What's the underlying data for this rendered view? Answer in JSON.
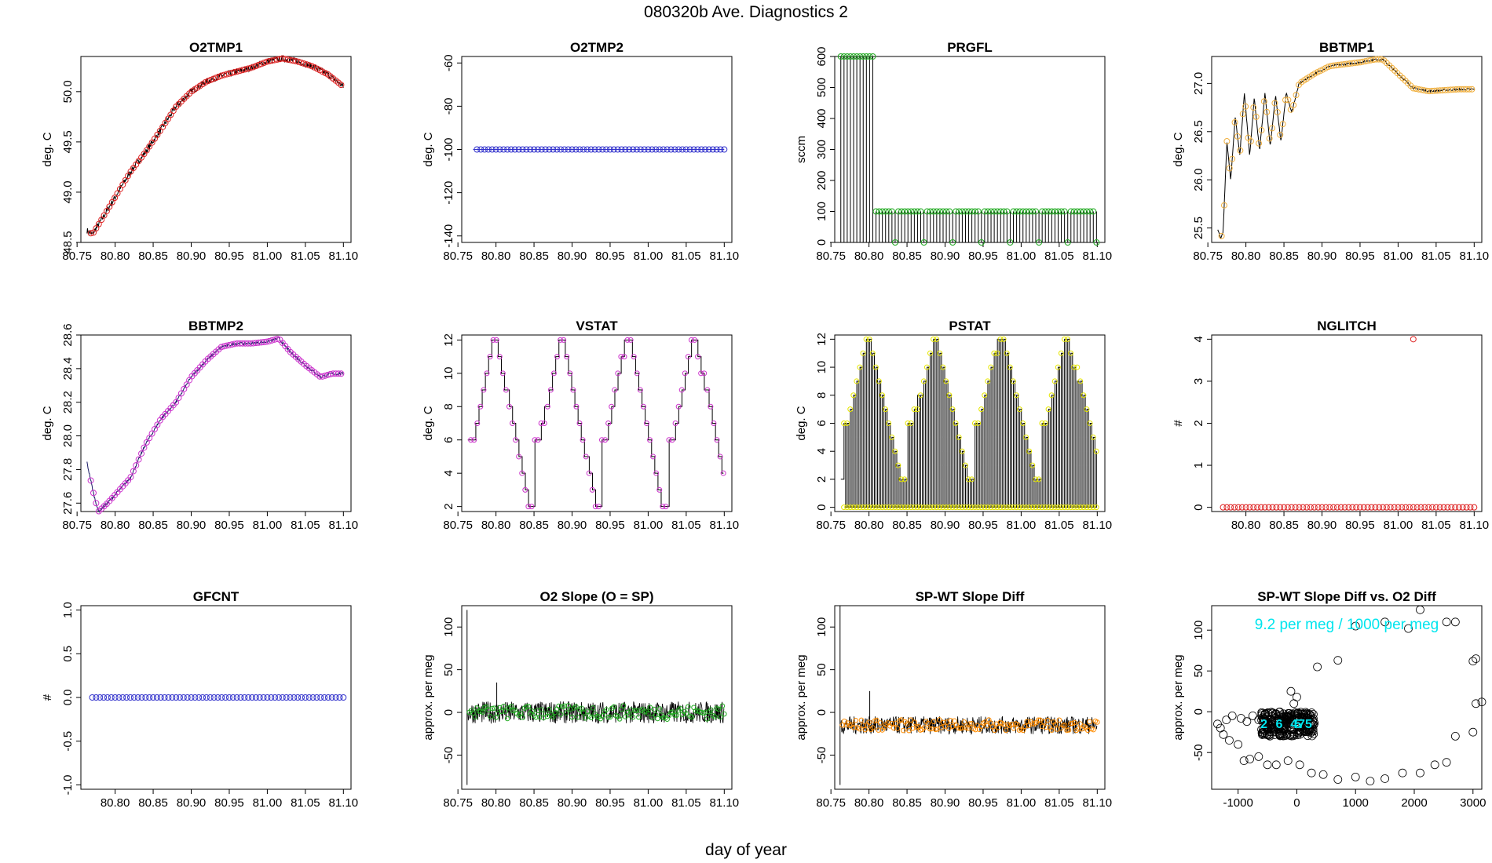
{
  "page": {
    "title": "080320b   Ave. Diagnostics 2",
    "xlabel": "day of year"
  },
  "colors": {
    "black": "#000000",
    "red": "#dd2222",
    "blue": "#3333cc",
    "green": "#22aa22",
    "orange": "#ff8c00",
    "gold": "#f0b040",
    "magenta": "#cc33cc",
    "yellow": "#e6e600",
    "cyan": "#00e5ee",
    "indigo": "#1a1a66"
  },
  "chart_data": [
    {
      "id": "o2tmp1",
      "type": "line",
      "title": "O2TMP1",
      "ylabel": "deg. C",
      "xlim": [
        80.755,
        81.11
      ],
      "ylim": [
        48.5,
        50.35
      ],
      "xticks": [
        80.8,
        80.85,
        80.9,
        80.95,
        81.0,
        81.05,
        81.1
      ],
      "xtick_labels": [
        "80.75",
        "80.80",
        "80.85",
        "80.90",
        "80.95",
        "81.00",
        "81.05",
        "81.10"
      ],
      "xtick_values": [
        80.75,
        80.8,
        80.85,
        80.9,
        80.95,
        81.0,
        81.05,
        81.1
      ],
      "yticks": [
        48.5,
        49.0,
        49.5,
        50.0
      ],
      "ytick_labels": [
        "48.5",
        "49.0",
        "49.5",
        "50.0"
      ],
      "line_color": "#000000",
      "marker_color": "#dd2222",
      "curve": [
        [
          80.763,
          48.62
        ],
        [
          80.77,
          48.58
        ],
        [
          80.78,
          48.7
        ],
        [
          80.8,
          48.95
        ],
        [
          80.82,
          49.2
        ],
        [
          80.84,
          49.4
        ],
        [
          80.86,
          49.62
        ],
        [
          80.88,
          49.85
        ],
        [
          80.9,
          50.0
        ],
        [
          80.92,
          50.1
        ],
        [
          80.94,
          50.16
        ],
        [
          80.96,
          50.2
        ],
        [
          80.98,
          50.24
        ],
        [
          81.0,
          50.3
        ],
        [
          81.02,
          50.33
        ],
        [
          81.04,
          50.3
        ],
        [
          81.06,
          50.25
        ],
        [
          81.08,
          50.17
        ],
        [
          81.1,
          50.05
        ]
      ],
      "noise": 0.03,
      "marker_dense": true
    },
    {
      "id": "o2tmp2",
      "type": "line",
      "title": "O2TMP2",
      "ylabel": "deg. C",
      "xlim": [
        80.755,
        81.11
      ],
      "ylim": [
        -143,
        -57
      ],
      "xtick_labels": [
        "80.75",
        "80.80",
        "80.85",
        "80.90",
        "80.95",
        "81.00",
        "81.05",
        "81.10"
      ],
      "xtick_values": [
        80.75,
        80.8,
        80.85,
        80.9,
        80.95,
        81.0,
        81.05,
        81.1
      ],
      "yticks": [
        -140,
        -120,
        -100,
        -80,
        -60
      ],
      "ytick_labels": [
        "-140",
        "-120",
        "-100",
        "-80",
        "-60"
      ],
      "line_color": "#3333cc",
      "marker_color": "#3333cc",
      "curve": [
        [
          80.77,
          -100
        ],
        [
          81.1,
          -100
        ]
      ],
      "noise": 0,
      "markers_every": 0.005
    },
    {
      "id": "prgfl",
      "type": "line",
      "title": "PRGFL",
      "ylabel": "sccm",
      "xlim": [
        80.755,
        81.11
      ],
      "ylim": [
        0,
        600
      ],
      "xtick_labels": [
        "80.75",
        "80.80",
        "80.85",
        "80.90",
        "80.95",
        "81.00",
        "81.05",
        "81.10"
      ],
      "xtick_values": [
        80.75,
        80.8,
        80.85,
        80.9,
        80.95,
        81.0,
        81.05,
        81.1
      ],
      "yticks": [
        0,
        100,
        200,
        300,
        400,
        500,
        600
      ],
      "ytick_labels": [
        "0",
        "100",
        "200",
        "300",
        "400",
        "500",
        "600"
      ],
      "line_color": "#000000",
      "marker_color": "#22aa22",
      "comb_high": 600,
      "comb_low": 100,
      "comb_switch": 80.805
    },
    {
      "id": "bbtmp1",
      "type": "line",
      "title": "BBTMP1",
      "ylabel": "deg. C",
      "xlim": [
        80.755,
        81.11
      ],
      "ylim": [
        25.35,
        27.28
      ],
      "xtick_labels": [
        "80.75",
        "80.80",
        "80.85",
        "80.90",
        "80.95",
        "81.00",
        "81.05",
        "81.10"
      ],
      "xtick_values": [
        80.75,
        80.8,
        80.85,
        80.9,
        80.95,
        81.0,
        81.05,
        81.1
      ],
      "yticks": [
        25.5,
        26.0,
        26.5,
        27.0
      ],
      "ytick_labels": [
        "25.5",
        "26.0",
        "26.5",
        "27.0"
      ],
      "line_color": "#000000",
      "marker_color": "#f0b040",
      "curve": [
        [
          80.763,
          25.48
        ],
        [
          80.767,
          25.4
        ],
        [
          80.77,
          25.45
        ],
        [
          80.775,
          26.4
        ],
        [
          80.78,
          26.0
        ],
        [
          80.786,
          26.65
        ],
        [
          80.792,
          26.25
        ],
        [
          80.798,
          26.9
        ],
        [
          80.805,
          26.25
        ],
        [
          80.811,
          26.85
        ],
        [
          80.818,
          26.3
        ],
        [
          80.825,
          26.9
        ],
        [
          80.832,
          26.35
        ],
        [
          80.839,
          26.87
        ],
        [
          80.846,
          26.4
        ],
        [
          80.853,
          26.9
        ],
        [
          80.86,
          26.7
        ],
        [
          80.87,
          27.0
        ],
        [
          80.89,
          27.1
        ],
        [
          80.91,
          27.18
        ],
        [
          80.93,
          27.2
        ],
        [
          80.95,
          27.22
        ],
        [
          80.97,
          27.25
        ],
        [
          80.98,
          27.25
        ],
        [
          81.0,
          27.1
        ],
        [
          81.02,
          26.95
        ],
        [
          81.04,
          26.92
        ],
        [
          81.06,
          26.93
        ],
        [
          81.08,
          26.94
        ],
        [
          81.1,
          26.94
        ]
      ],
      "noise": 0.01,
      "marker_dense": true
    },
    {
      "id": "bbtmp2",
      "type": "line",
      "title": "BBTMP2",
      "ylabel": "deg. C",
      "xlim": [
        80.755,
        81.11
      ],
      "ylim": [
        27.55,
        28.6
      ],
      "xtick_labels": [
        "80.75",
        "80.80",
        "80.85",
        "80.90",
        "80.95",
        "81.00",
        "81.05",
        "81.10"
      ],
      "xtick_values": [
        80.75,
        80.8,
        80.85,
        80.9,
        80.95,
        81.0,
        81.05,
        81.1
      ],
      "yticks": [
        27.6,
        27.8,
        28.0,
        28.2,
        28.4,
        28.6
      ],
      "ytick_labels": [
        "27.6",
        "27.8",
        "28.0",
        "28.2",
        "28.4",
        "28.6"
      ],
      "line_color": "#1a1a66",
      "marker_color": "#cc33cc",
      "curve": [
        [
          80.763,
          27.84
        ],
        [
          80.772,
          27.65
        ],
        [
          80.778,
          27.55
        ],
        [
          80.79,
          27.6
        ],
        [
          80.82,
          27.75
        ],
        [
          80.84,
          27.95
        ],
        [
          80.86,
          28.1
        ],
        [
          80.88,
          28.2
        ],
        [
          80.9,
          28.35
        ],
        [
          80.92,
          28.45
        ],
        [
          80.94,
          28.53
        ],
        [
          80.96,
          28.55
        ],
        [
          80.98,
          28.55
        ],
        [
          81.0,
          28.56
        ],
        [
          81.015,
          28.58
        ],
        [
          81.03,
          28.5
        ],
        [
          81.05,
          28.42
        ],
        [
          81.07,
          28.35
        ],
        [
          81.085,
          28.37
        ],
        [
          81.1,
          28.37
        ]
      ],
      "noise": 0.008,
      "marker_dense": true
    },
    {
      "id": "vstat",
      "type": "step",
      "title": "VSTAT",
      "ylabel": "deg. C",
      "xlim": [
        80.755,
        81.11
      ],
      "ylim": [
        1.7,
        12.3
      ],
      "xtick_labels": [
        "80.75",
        "80.80",
        "80.85",
        "80.90",
        "80.95",
        "81.00",
        "81.05",
        "81.10"
      ],
      "xtick_values": [
        80.75,
        80.8,
        80.85,
        80.9,
        80.95,
        81.0,
        81.05,
        81.1
      ],
      "yticks": [
        2,
        4,
        6,
        8,
        10,
        12
      ],
      "ytick_labels": [
        "2",
        "4",
        "6",
        "8",
        "10",
        "12"
      ],
      "line_color": "#000000",
      "marker_color": "#cc33cc",
      "cycle_start": 80.763,
      "cycle_len": 0.0875,
      "cycle_count": 4
    },
    {
      "id": "pstat",
      "type": "comb",
      "title": "PSTAT",
      "ylabel": "deg. C",
      "xlim": [
        80.755,
        81.11
      ],
      "ylim": [
        -0.3,
        12.3
      ],
      "xtick_labels": [
        "80.75",
        "80.80",
        "80.85",
        "80.90",
        "80.95",
        "81.00",
        "81.05",
        "81.10"
      ],
      "xtick_values": [
        80.75,
        80.8,
        80.85,
        80.9,
        80.95,
        81.0,
        81.05,
        81.1
      ],
      "yticks": [
        0,
        2,
        4,
        6,
        8,
        10,
        12
      ],
      "ytick_labels": [
        "0",
        "2",
        "4",
        "6",
        "8",
        "10",
        "12"
      ],
      "line_color": "#000000",
      "marker_color": "#e6e600",
      "cycle_start": 80.763,
      "cycle_len": 0.0875,
      "cycle_count": 4
    },
    {
      "id": "nglitch",
      "type": "scatter",
      "title": "NGLITCH",
      "ylabel": "#",
      "xlim": [
        80.755,
        81.11
      ],
      "ylim": [
        -0.1,
        4.1
      ],
      "xtick_labels": [
        "80.80",
        "80.85",
        "80.90",
        "80.95",
        "81.00",
        "81.05",
        "81.10"
      ],
      "xtick_values": [
        80.8,
        80.85,
        80.9,
        80.95,
        81.0,
        81.05,
        81.1
      ],
      "yticks": [
        0,
        1,
        2,
        3,
        4
      ],
      "ytick_labels": [
        "0",
        "1",
        "2",
        "3",
        "4"
      ],
      "marker_color": "#dd2222",
      "flat_value": 0,
      "flat_from": 80.77,
      "flat_to": 81.1,
      "flat_step": 0.005,
      "outlier": [
        81.02,
        4
      ]
    },
    {
      "id": "gfcnt",
      "type": "scatter",
      "title": "GFCNT",
      "ylabel": "#",
      "xlim": [
        80.755,
        81.11
      ],
      "ylim": [
        -1.05,
        1.05
      ],
      "xtick_labels": [
        "80.80",
        "80.85",
        "80.90",
        "80.95",
        "81.00",
        "81.05",
        "81.10"
      ],
      "xtick_values": [
        80.8,
        80.85,
        80.9,
        80.95,
        81.0,
        81.05,
        81.1
      ],
      "yticks": [
        -1,
        -0.5,
        0,
        0.5,
        1
      ],
      "ytick_labels": [
        "-1.0",
        "-0.5",
        "0.0",
        "0.5",
        "1.0"
      ],
      "marker_color": "#3333cc",
      "flat_value": 0,
      "flat_from": 80.77,
      "flat_to": 81.1,
      "flat_step": 0.005
    },
    {
      "id": "o2slope",
      "type": "line",
      "title": "O2 Slope (O = SP)",
      "ylabel": "approx. per meg",
      "xlim": [
        80.755,
        81.11
      ],
      "ylim": [
        -90,
        125
      ],
      "xtick_labels": [
        "80.75",
        "80.80",
        "80.85",
        "80.90",
        "80.95",
        "81.00",
        "81.05",
        "81.10"
      ],
      "xtick_values": [
        80.75,
        80.8,
        80.85,
        80.9,
        80.95,
        81.0,
        81.05,
        81.1
      ],
      "yticks": [
        -50,
        0,
        50,
        100
      ],
      "ytick_labels": [
        "-50",
        "0",
        "50",
        "100"
      ],
      "line_color": "#000000",
      "marker_color": "#22aa22",
      "center": 0,
      "band": 10,
      "spike_x": 80.762,
      "spike_hi": 120,
      "spike_lo": -85,
      "spike2_x": 80.801,
      "spike2_hi": 35
    },
    {
      "id": "spwtdiff",
      "type": "line",
      "title": "SP-WT Slope Diff",
      "ylabel": "approx. per meg",
      "xlim": [
        80.755,
        81.11
      ],
      "ylim": [
        -90,
        125
      ],
      "xtick_labels": [
        "80.75",
        "80.80",
        "80.85",
        "80.90",
        "80.95",
        "81.00",
        "81.05",
        "81.10"
      ],
      "xtick_values": [
        80.75,
        80.8,
        80.85,
        80.9,
        80.95,
        81.0,
        81.05,
        81.1
      ],
      "yticks": [
        -50,
        0,
        50,
        100
      ],
      "ytick_labels": [
        "-50",
        "0",
        "50",
        "100"
      ],
      "line_color": "#000000",
      "marker_color": "#ff8c00",
      "center": -15,
      "band": 8,
      "spike_x": 80.762,
      "spike_hi": 125,
      "spike_lo": -85,
      "spike2_x": 80.801,
      "spike2_hi": 25
    },
    {
      "id": "spwtvso2",
      "type": "scatter",
      "title": "SP-WT Slope Diff vs. O2 Diff",
      "ylabel": "approx. per meg",
      "xlim": [
        -1450,
        3150
      ],
      "ylim": [
        -95,
        130
      ],
      "xtick_labels": [
        "-1000",
        "0",
        "1000",
        "2000",
        "3000"
      ],
      "xtick_values": [
        -1000,
        0,
        1000,
        2000,
        3000
      ],
      "yticks": [
        -50,
        0,
        50,
        100
      ],
      "ytick_labels": [
        "-50",
        "0",
        "50",
        "100"
      ],
      "marker_color": "#000000",
      "label_color": "#00e5ee",
      "annotation": "9.2 per meg / 1000 per meg",
      "cluster_labels": [
        "2",
        "6",
        "4",
        "5",
        "7",
        "5"
      ],
      "outliers": [
        [
          2100,
          125
        ],
        [
          2550,
          110
        ],
        [
          2700,
          110
        ],
        [
          1900,
          102
        ],
        [
          1500,
          110
        ],
        [
          1000,
          105
        ],
        [
          700,
          63
        ],
        [
          350,
          55
        ],
        [
          3000,
          62
        ],
        [
          3050,
          65
        ],
        [
          3050,
          10
        ],
        [
          3150,
          12
        ],
        [
          3000,
          -25
        ],
        [
          2700,
          -30
        ],
        [
          2550,
          -62
        ],
        [
          2350,
          -65
        ],
        [
          2100,
          -75
        ],
        [
          1800,
          -75
        ],
        [
          1500,
          -82
        ],
        [
          1250,
          -85
        ],
        [
          1000,
          -80
        ],
        [
          700,
          -83
        ],
        [
          450,
          -77
        ],
        [
          250,
          -75
        ],
        [
          50,
          -65
        ],
        [
          -150,
          -60
        ],
        [
          -350,
          -65
        ],
        [
          -500,
          -65
        ],
        [
          -650,
          -55
        ],
        [
          -800,
          -58
        ],
        [
          -900,
          -60
        ],
        [
          -1000,
          -40
        ],
        [
          -1150,
          -35
        ],
        [
          -1250,
          -28
        ],
        [
          -1350,
          -15
        ],
        [
          -1300,
          -20
        ],
        [
          -1200,
          -10
        ],
        [
          -1100,
          -5
        ],
        [
          -950,
          -8
        ],
        [
          -850,
          -12
        ],
        [
          -750,
          -5
        ],
        [
          -650,
          -10
        ],
        [
          -100,
          25
        ],
        [
          0,
          18
        ],
        [
          -50,
          10
        ]
      ]
    }
  ]
}
